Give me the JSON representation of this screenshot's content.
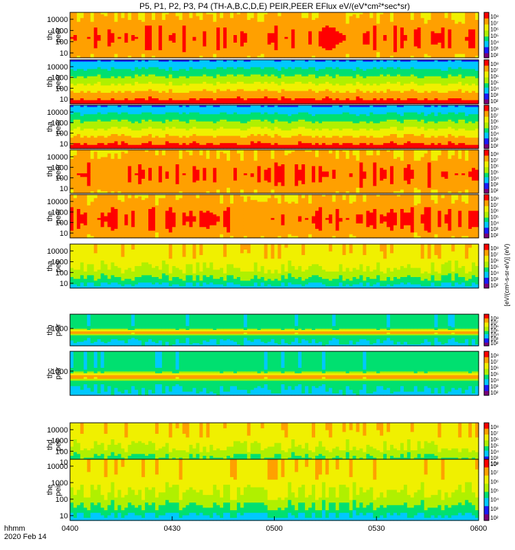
{
  "chart_data": {
    "type": "heatmap",
    "title": "P5, P1, P2, P3, P4 (TH-A,B,C,D,E) PEIR,PEER EFlux eV/(eV*cm²*sec*sr)",
    "xlabel_line1": "hhmm",
    "xlabel_line2": "2020 Feb 14",
    "x_ticks": [
      "0400",
      "0430",
      "0500",
      "0530",
      "0600"
    ],
    "colorbar_label": "[eV/(cm²-s-sr-eV)] (eV)",
    "colorbar_ticks": [
      "10⁸",
      "10⁷",
      "10⁶",
      "10⁵",
      "10⁴",
      "10³",
      "10²"
    ],
    "colormap": [
      "#7a007a",
      "#1a1aff",
      "#00c8ff",
      "#00e070",
      "#b0f000",
      "#f0f000",
      "#ffa000",
      "#ff0000"
    ],
    "panels": [
      {
        "name": "thc peer",
        "line1": "thc",
        "line2": "peer",
        "yticks": [
          "10000",
          "1000",
          "100",
          "10"
        ],
        "intensity": "high"
      },
      {
        "name": "thb peer",
        "line1": "thb",
        "line2": "peer",
        "yticks": [
          "10000",
          "1000",
          "100",
          "10"
        ],
        "intensity": "banded"
      },
      {
        "name": "tha peer",
        "line1": "tha",
        "line2": "peer",
        "yticks": [
          "10000",
          "1000",
          "100",
          "10"
        ],
        "intensity": "banded"
      },
      {
        "name": "thd peer",
        "line1": "thd",
        "line2": "peer",
        "yticks": [
          "10000",
          "1000",
          "100",
          "10"
        ],
        "intensity": "high"
      },
      {
        "name": "the peer",
        "line1": "the",
        "line2": "peer",
        "yticks": [
          "10000",
          "1000",
          "100",
          "10"
        ],
        "intensity": "high"
      },
      {
        "name": "tha peir",
        "line1": "tha",
        "line2": "peir",
        "yticks": [
          "10000",
          "1000",
          "100",
          "10"
        ],
        "intensity": "medium"
      },
      {
        "name": "thb peir",
        "line1": "thb",
        "line2": "peir",
        "yticks": [
          "1000"
        ],
        "intensity": "band"
      },
      {
        "name": "thc peir",
        "line1": "thc",
        "line2": "peir",
        "yticks": [
          "1000"
        ],
        "intensity": "band"
      },
      {
        "name": "thd peir",
        "line1": "thd",
        "line2": "peir",
        "yticks": [
          "10000",
          "1000",
          "100",
          "10"
        ],
        "intensity": "medium"
      },
      {
        "name": "the peir",
        "line1": "the",
        "line2": "peir",
        "yticks": [
          "10000",
          "1000",
          "100",
          "10"
        ],
        "intensity": "medium"
      }
    ],
    "grid": false
  }
}
